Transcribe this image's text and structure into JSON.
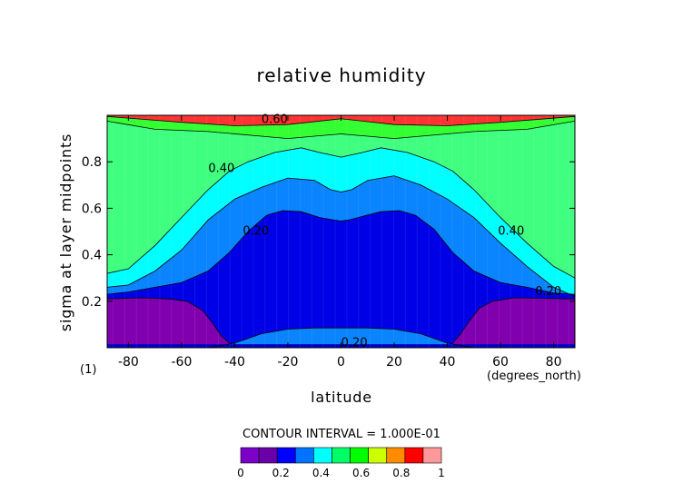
{
  "chart_data": {
    "type": "heatmap",
    "title": "relative humidity",
    "xlabel": "latitude",
    "x_units": "(degrees_north)",
    "ylabel": "sigma at layer midpoints",
    "y_units": "(1)",
    "xlim": [
      -88,
      88
    ],
    "ylim": [
      0,
      1
    ],
    "x_ticks": [
      -80,
      -60,
      -40,
      -20,
      0,
      20,
      40,
      60,
      80
    ],
    "y_ticks": [
      0.2,
      0.4,
      0.6,
      0.8
    ],
    "contour_interval_text": "CONTOUR INTERVAL = 1.000E-01",
    "levels": [
      0,
      0.1,
      0.2,
      0.3,
      0.4,
      0.5,
      0.6,
      0.7,
      0.8,
      0.9,
      1.0
    ],
    "colorbar_colors": [
      "#7b00c8",
      "#6a00a8",
      "#0000ff",
      "#0073ff",
      "#00ffff",
      "#00ff66",
      "#00ff00",
      "#ccff00",
      "#ff8c00",
      "#ff0000",
      "#ff9999"
    ],
    "colorbar_labels": [
      "0",
      "0.2",
      "0.4",
      "0.6",
      "0.8",
      "1"
    ],
    "fill_colors": {
      "0.1": "#8000b0",
      "0.2": "#0000e6",
      "0.3": "#0a84ff",
      "0.4": "#00ffff",
      "0.5": "#40ff80",
      "0.6": "#33ff33",
      "0.7": "#ccff00",
      "0.8": "#ff8c00",
      "0.9": "#ff3333"
    },
    "contour_labels": [
      {
        "text": "0.60",
        "lat": -25,
        "sigma": 0.98
      },
      {
        "text": "0.40",
        "lat": -45,
        "sigma": 0.77
      },
      {
        "text": "0.40",
        "lat": 64,
        "sigma": 0.5
      },
      {
        "text": "0.20",
        "lat": -32,
        "sigma": 0.5
      },
      {
        "text": "0.20",
        "lat": 78,
        "sigma": 0.24
      },
      {
        "text": "0.20",
        "lat": 5,
        "sigma": 0.02
      }
    ],
    "regions": [
      {
        "level": 0.6,
        "contour": [
          [
            -88,
            0.995
          ],
          [
            -60,
            0.97
          ],
          [
            -40,
            0.955
          ],
          [
            -20,
            0.96
          ],
          [
            0,
            0.985
          ],
          [
            20,
            0.96
          ],
          [
            40,
            0.955
          ],
          [
            60,
            0.97
          ],
          [
            88,
            0.995
          ]
        ]
      },
      {
        "level": 0.5,
        "contour": [
          [
            -88,
            0.975
          ],
          [
            -70,
            0.94
          ],
          [
            -50,
            0.93
          ],
          [
            -30,
            0.91
          ],
          [
            -20,
            0.9
          ],
          [
            -10,
            0.91
          ],
          [
            0,
            0.92
          ],
          [
            10,
            0.91
          ],
          [
            20,
            0.9
          ],
          [
            30,
            0.91
          ],
          [
            50,
            0.93
          ],
          [
            70,
            0.94
          ],
          [
            88,
            0.975
          ]
        ]
      },
      {
        "level": 0.4,
        "contour": [
          [
            -88,
            0.32
          ],
          [
            -80,
            0.34
          ],
          [
            -70,
            0.44
          ],
          [
            -60,
            0.56
          ],
          [
            -50,
            0.68
          ],
          [
            -42,
            0.76
          ],
          [
            -35,
            0.8
          ],
          [
            -25,
            0.84
          ],
          [
            -15,
            0.86
          ],
          [
            -8,
            0.84
          ],
          [
            0,
            0.82
          ],
          [
            8,
            0.84
          ],
          [
            15,
            0.86
          ],
          [
            25,
            0.84
          ],
          [
            35,
            0.8
          ],
          [
            42,
            0.76
          ],
          [
            50,
            0.68
          ],
          [
            60,
            0.56
          ],
          [
            70,
            0.45
          ],
          [
            80,
            0.35
          ],
          [
            88,
            0.3
          ]
        ]
      },
      {
        "level": 0.3,
        "contour": [
          [
            -88,
            0.26
          ],
          [
            -80,
            0.27
          ],
          [
            -70,
            0.33
          ],
          [
            -60,
            0.42
          ],
          [
            -50,
            0.55
          ],
          [
            -40,
            0.64
          ],
          [
            -30,
            0.69
          ],
          [
            -20,
            0.73
          ],
          [
            -10,
            0.72
          ],
          [
            -4,
            0.68
          ],
          [
            0,
            0.67
          ],
          [
            4,
            0.68
          ],
          [
            10,
            0.72
          ],
          [
            20,
            0.74
          ],
          [
            30,
            0.7
          ],
          [
            40,
            0.64
          ],
          [
            50,
            0.56
          ],
          [
            60,
            0.45
          ],
          [
            70,
            0.35
          ],
          [
            80,
            0.26
          ],
          [
            88,
            0.22
          ]
        ]
      },
      {
        "level": 0.2,
        "contour": [
          [
            -88,
            0.23
          ],
          [
            -80,
            0.24
          ],
          [
            -70,
            0.26
          ],
          [
            -60,
            0.28
          ],
          [
            -50,
            0.33
          ],
          [
            -42,
            0.41
          ],
          [
            -35,
            0.5
          ],
          [
            -28,
            0.57
          ],
          [
            -22,
            0.59
          ],
          [
            -15,
            0.585
          ],
          [
            -8,
            0.56
          ],
          [
            -3,
            0.55
          ],
          [
            0,
            0.545
          ],
          [
            3,
            0.55
          ],
          [
            8,
            0.565
          ],
          [
            15,
            0.585
          ],
          [
            22,
            0.59
          ],
          [
            28,
            0.57
          ],
          [
            35,
            0.51
          ],
          [
            42,
            0.41
          ],
          [
            50,
            0.33
          ],
          [
            60,
            0.28
          ],
          [
            70,
            0.26
          ],
          [
            80,
            0.235
          ],
          [
            88,
            0.23
          ]
        ]
      },
      {
        "level": 0.1,
        "contour": [
          [
            -88,
            0.21
          ],
          [
            -75,
            0.215
          ],
          [
            -65,
            0.21
          ],
          [
            -58,
            0.2
          ],
          [
            -52,
            0.16
          ],
          [
            -48,
            0.1
          ],
          [
            -45,
            0.05
          ],
          [
            -42,
            0.02
          ]
        ],
        "side": "left"
      },
      {
        "level": 0.1,
        "contour": [
          [
            42,
            0.02
          ],
          [
            45,
            0.06
          ],
          [
            48,
            0.11
          ],
          [
            52,
            0.17
          ],
          [
            57,
            0.2
          ],
          [
            65,
            0.215
          ],
          [
            88,
            0.21
          ]
        ],
        "side": "right"
      },
      {
        "level": 0.3,
        "contour": [
          [
            -50,
            0.0
          ],
          [
            -40,
            0.02
          ],
          [
            -30,
            0.06
          ],
          [
            -20,
            0.08
          ],
          [
            -10,
            0.085
          ],
          [
            0,
            0.085
          ],
          [
            10,
            0.085
          ],
          [
            20,
            0.08
          ],
          [
            30,
            0.06
          ],
          [
            40,
            0.02
          ],
          [
            50,
            0.0
          ]
        ],
        "side": "bottom"
      }
    ]
  }
}
